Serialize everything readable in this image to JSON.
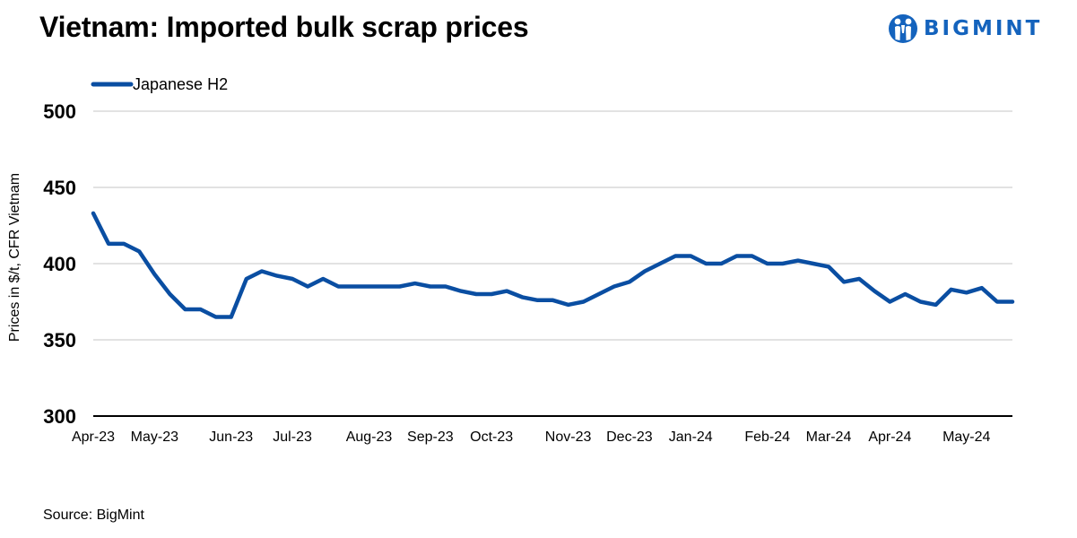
{
  "header": {
    "title": "Vietnam: Imported bulk scrap prices",
    "logo_text": "BIGMINT"
  },
  "footer": {
    "source": "Source: BigMint"
  },
  "colors": {
    "series": "#0a4ea2",
    "logo": "#1463bd",
    "gridline": "#d9d9d9",
    "axis": "#000000"
  },
  "chart_data": {
    "type": "line",
    "title": "Vietnam: Imported bulk scrap prices",
    "ylabel": "Prices in $/t, CFR Vietnam",
    "ylim": [
      300,
      500
    ],
    "yticks": [
      300,
      350,
      400,
      450,
      500
    ],
    "grid": true,
    "legend": "top-left",
    "x_ticks": [
      {
        "label": "Apr-23",
        "index": 0
      },
      {
        "label": "May-23",
        "index": 4
      },
      {
        "label": "Jun-23",
        "index": 9
      },
      {
        "label": "Jul-23",
        "index": 13
      },
      {
        "label": "Aug-23",
        "index": 18
      },
      {
        "label": "Sep-23",
        "index": 22
      },
      {
        "label": "Oct-23",
        "index": 26
      },
      {
        "label": "Nov-23",
        "index": 31
      },
      {
        "label": "Dec-23",
        "index": 35
      },
      {
        "label": "Jan-24",
        "index": 39
      },
      {
        "label": "Feb-24",
        "index": 44
      },
      {
        "label": "Mar-24",
        "index": 48
      },
      {
        "label": "Apr-24",
        "index": 52
      },
      {
        "label": "May-24",
        "index": 57
      }
    ],
    "series": [
      {
        "name": "Japanese H2",
        "values": [
          433,
          413,
          413,
          408,
          393,
          380,
          370,
          370,
          365,
          365,
          390,
          395,
          392,
          390,
          385,
          390,
          385,
          385,
          385,
          385,
          385,
          387,
          385,
          385,
          382,
          380,
          380,
          382,
          378,
          376,
          376,
          373,
          375,
          380,
          385,
          388,
          395,
          400,
          405,
          405,
          400,
          400,
          405,
          405,
          400,
          400,
          402,
          400,
          398,
          388,
          390,
          382,
          375,
          380,
          375,
          373,
          383,
          381,
          384,
          375,
          375
        ]
      }
    ]
  }
}
